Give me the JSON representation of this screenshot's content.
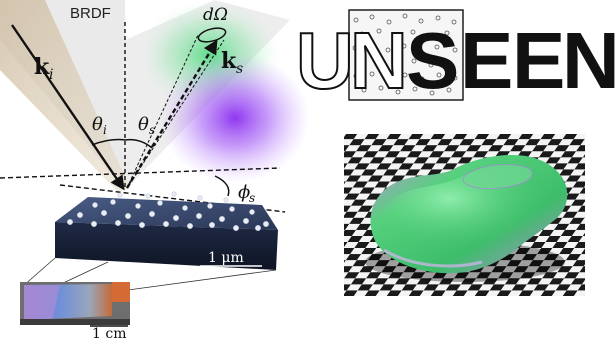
{
  "brdf_diagram": {
    "title": "BRDF",
    "incident_label": "k",
    "incident_sub": "i",
    "scatter_label": "k",
    "scatter_sub": "s",
    "solid_angle_label": "dΩ",
    "theta_i_label": "θ",
    "theta_i_sub": "i",
    "theta_s_label": "θ",
    "theta_s_sub": "s",
    "phi_s_label": "ϕ",
    "phi_s_sub": "s",
    "scale_bar_label": "1 μm"
  },
  "sample_photo": {
    "scale_bar_label": "1 cm"
  },
  "logo": {
    "letters": [
      "U",
      "N",
      "S",
      "E",
      "E",
      "N"
    ],
    "highlight_letters": "NS"
  },
  "render": {
    "checker_colors": [
      "#1a1a1a",
      "#f4f4f4"
    ],
    "car_colors": [
      "#3ec36a",
      "#b07fd8",
      "#7ad2a0"
    ]
  }
}
